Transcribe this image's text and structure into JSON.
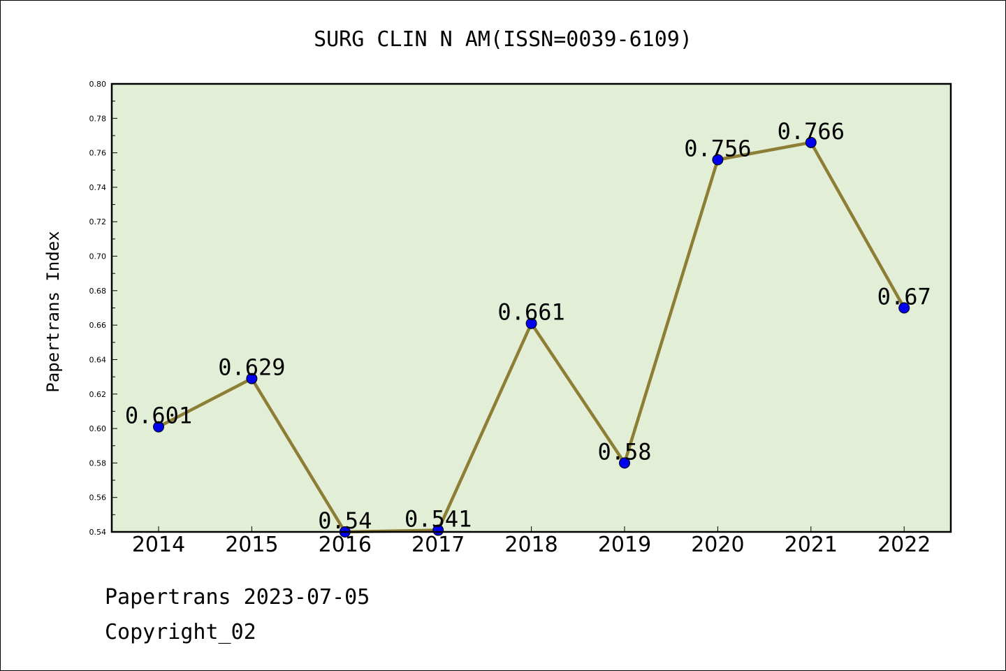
{
  "chart_data": {
    "type": "line",
    "title": "SURG CLIN N AM(ISSN=0039-6109)",
    "xlabel": "",
    "ylabel": "Papertrans Index",
    "categories": [
      "2014",
      "2015",
      "2016",
      "2017",
      "2018",
      "2019",
      "2020",
      "2021",
      "2022"
    ],
    "series": [
      {
        "values": [
          0.601,
          0.629,
          0.54,
          0.541,
          0.661,
          0.58,
          0.756,
          0.766,
          0.67
        ]
      }
    ],
    "data_labels": [
      "0.601",
      "0.629",
      "0.54",
      "0.541",
      "0.661",
      "0.58",
      "0.756",
      "0.766",
      "0.67"
    ],
    "ylim": [
      0.54,
      0.8
    ],
    "yticks": [
      "0.54",
      "0.56",
      "0.58",
      "0.60",
      "0.62",
      "0.64",
      "0.66",
      "0.68",
      "0.70",
      "0.72",
      "0.74",
      "0.76",
      "0.78",
      "0.80"
    ],
    "grid": false,
    "colors": {
      "plot_background": "#e2efd6",
      "line": "#8c7f35",
      "marker": "#0000ee"
    }
  },
  "footer": {
    "line1": "Papertrans 2023-07-05",
    "line2": "Copyright_02"
  }
}
